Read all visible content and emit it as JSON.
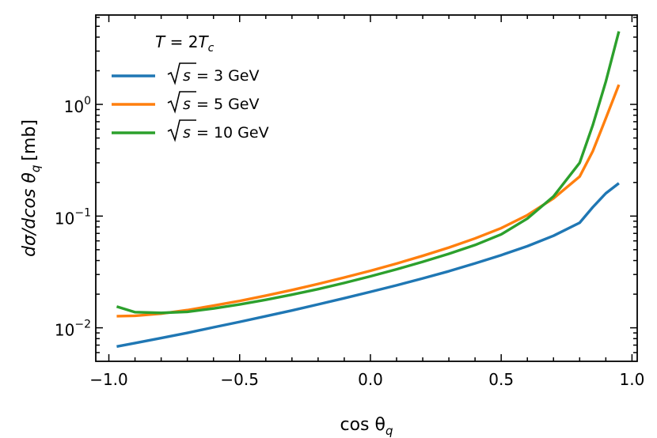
{
  "chart_data": {
    "type": "line",
    "title": "",
    "xlabel_base": "cos θ",
    "xlabel_sub": "q",
    "ylabel_base": "dσ/dcos θ",
    "ylabel_sub": "q",
    "ylabel_unit": "[mb]",
    "xlim": [
      -1.05,
      1.02
    ],
    "ylim_log10": [
      -2.3,
      0.8
    ],
    "x_ticks": [
      -1.0,
      -0.5,
      0.0,
      0.5,
      1.0
    ],
    "x_tick_labels": [
      "−1.0",
      "−0.5",
      "0.0",
      "0.5",
      "1.0"
    ],
    "y_ticks_log10": [
      -2,
      -1,
      0
    ],
    "y_tick_labels": [
      {
        "base": "10",
        "exp": "−2"
      },
      {
        "base": "10",
        "exp": "−1"
      },
      {
        "base": "10",
        "exp": "0"
      }
    ],
    "legend": {
      "placement": "top-left",
      "title_main": "T",
      "title_eq": " = 2",
      "title_T": "T",
      "title_sub": "c"
    },
    "series": [
      {
        "name": "√s = 3 GeV",
        "label_text": " = 3 GeV",
        "color": "#1f77b4",
        "x": [
          -0.97,
          -0.9,
          -0.8,
          -0.7,
          -0.6,
          -0.5,
          -0.4,
          -0.3,
          -0.2,
          -0.1,
          0.0,
          0.1,
          0.2,
          0.3,
          0.4,
          0.5,
          0.6,
          0.7,
          0.8,
          0.85,
          0.9,
          0.95
        ],
        "y": [
          0.0068,
          0.0073,
          0.0081,
          0.009,
          0.0101,
          0.0113,
          0.0127,
          0.0143,
          0.0162,
          0.0184,
          0.021,
          0.024,
          0.0277,
          0.0321,
          0.0377,
          0.0447,
          0.0538,
          0.0667,
          0.0872,
          0.12,
          0.16,
          0.197
        ]
      },
      {
        "name": "√s = 5 GeV",
        "label_text": " = 5 GeV",
        "color": "#ff7f0e",
        "x": [
          -0.97,
          -0.9,
          -0.8,
          -0.7,
          -0.6,
          -0.5,
          -0.4,
          -0.3,
          -0.2,
          -0.1,
          0.0,
          0.1,
          0.2,
          0.3,
          0.4,
          0.5,
          0.6,
          0.7,
          0.8,
          0.85,
          0.9,
          0.95
        ],
        "y": [
          0.0127,
          0.0128,
          0.0134,
          0.0144,
          0.0158,
          0.0174,
          0.0194,
          0.0218,
          0.0247,
          0.0282,
          0.0324,
          0.0376,
          0.0441,
          0.0523,
          0.0631,
          0.078,
          0.102,
          0.144,
          0.226,
          0.38,
          0.75,
          1.5
        ]
      },
      {
        "name": "√s = 10 GeV",
        "label_text": " = 10 GeV",
        "color": "#2ca02c",
        "x": [
          -0.97,
          -0.9,
          -0.8,
          -0.7,
          -0.6,
          -0.5,
          -0.4,
          -0.3,
          -0.2,
          -0.1,
          0.0,
          0.1,
          0.2,
          0.3,
          0.4,
          0.5,
          0.6,
          0.7,
          0.8,
          0.85,
          0.9,
          0.95
        ],
        "y": [
          0.0155,
          0.0138,
          0.0136,
          0.0139,
          0.0149,
          0.0162,
          0.0178,
          0.0198,
          0.0222,
          0.0252,
          0.0289,
          0.0334,
          0.039,
          0.046,
          0.0551,
          0.0686,
          0.095,
          0.15,
          0.3,
          0.65,
          1.6,
          4.5
        ]
      }
    ]
  }
}
